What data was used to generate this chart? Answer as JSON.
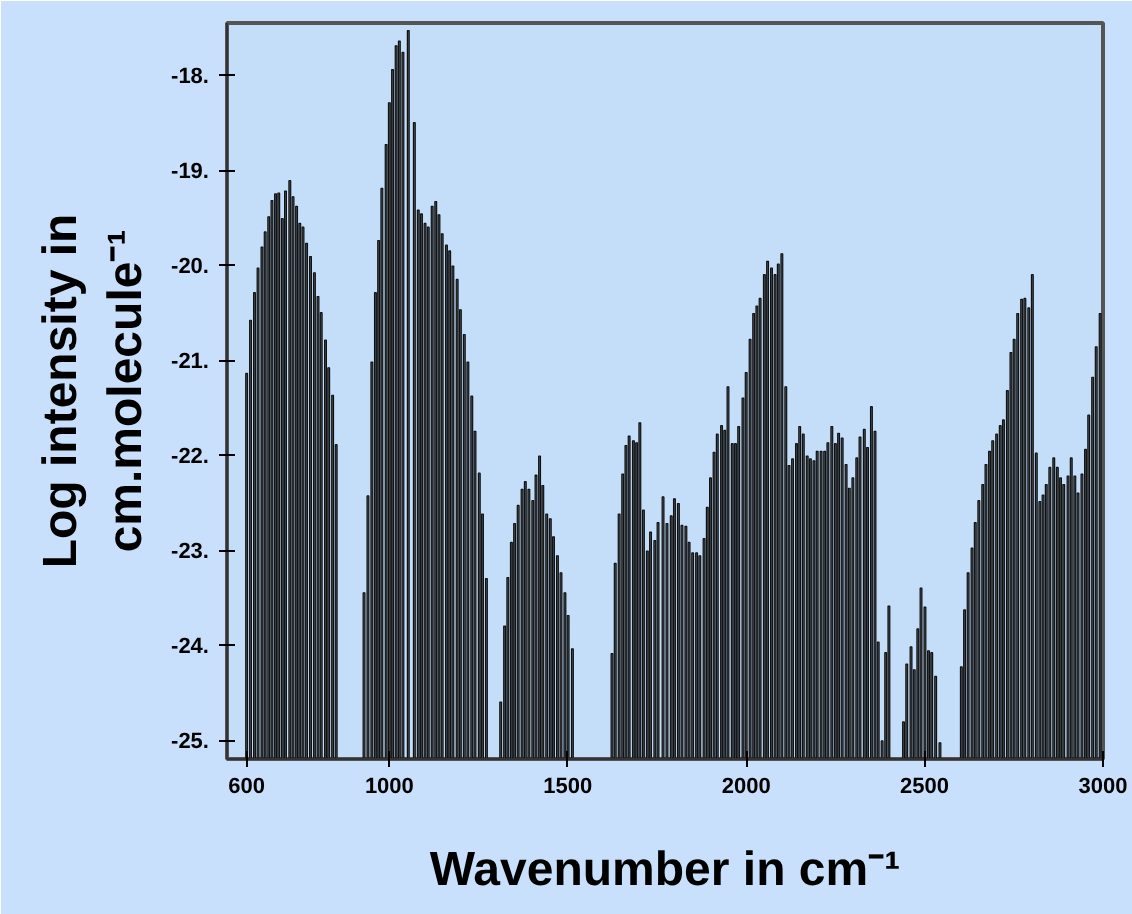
{
  "chart_data": {
    "type": "bar",
    "xlabel": "Wavenumber in cm⁻¹",
    "ylabel": "Log intensity in\ncm.molecule⁻¹",
    "color": "#4f5a66",
    "grid": false,
    "x": [
      600,
      611,
      622,
      632,
      643,
      652,
      662,
      671,
      681,
      690,
      700,
      709,
      721,
      730,
      740,
      749,
      758,
      768,
      779,
      790,
      800,
      809,
      821,
      830,
      841,
      851,
      929,
      940,
      951,
      961,
      970,
      979,
      991,
      1000,
      1009,
      1019,
      1028,
      1038,
      1053,
      1070,
      1081,
      1090,
      1100,
      1109,
      1120,
      1130,
      1139,
      1148,
      1160,
      1169,
      1178,
      1190,
      1199,
      1210,
      1220,
      1231,
      1240,
      1252,
      1261,
      1272,
      1312,
      1323,
      1332,
      1342,
      1351,
      1361,
      1372,
      1381,
      1391,
      1402,
      1411,
      1421,
      1430,
      1441,
      1451,
      1460,
      1471,
      1481,
      1492,
      1501,
      1513,
      1624,
      1633,
      1644,
      1654,
      1663,
      1672,
      1684,
      1693,
      1702,
      1712,
      1723,
      1732,
      1744,
      1753,
      1767,
      1778,
      1790,
      1799,
      1810,
      1820,
      1831,
      1840,
      1850,
      1861,
      1870,
      1882,
      1891,
      1900,
      1910,
      1919,
      1931,
      1940,
      1949,
      1961,
      1970,
      1979,
      1991,
      2000,
      2011,
      2021,
      2030,
      2039,
      2051,
      2060,
      2071,
      2081,
      2090,
      2100,
      2111,
      2120,
      2130,
      2141,
      2150,
      2160,
      2171,
      2180,
      2190,
      2199,
      2210,
      2220,
      2229,
      2240,
      2250,
      2259,
      2269,
      2280,
      2289,
      2299,
      2310,
      2319,
      2331,
      2340,
      2351,
      2361,
      2370,
      2381,
      2391,
      2400,
      2441,
      2450,
      2462,
      2471,
      2481,
      2490,
      2501,
      2511,
      2520,
      2531,
      2543,
      2603,
      2612,
      2622,
      2633,
      2642,
      2652,
      2663,
      2672,
      2682,
      2691,
      2702,
      2712,
      2721,
      2732,
      2742,
      2751,
      2761,
      2772,
      2781,
      2792,
      2802,
      2813,
      2823,
      2832,
      2841,
      2851,
      2862,
      2872,
      2881,
      2890,
      2902,
      2911,
      2921,
      2930,
      2941,
      2951,
      2960,
      2971,
      2981,
      2992
    ],
    "values": [
      4.06,
      4.62,
      4.91,
      5.17,
      5.39,
      5.55,
      5.71,
      5.88,
      5.95,
      5.96,
      5.69,
      5.98,
      6.09,
      5.92,
      5.82,
      5.64,
      5.6,
      5.43,
      5.29,
      5.12,
      4.87,
      4.7,
      4.41,
      4.12,
      3.83,
      3.31,
      1.75,
      2.77,
      4.18,
      4.91,
      5.46,
      6.01,
      6.47,
      6.91,
      7.26,
      7.51,
      7.56,
      7.44,
      7.67,
      6.7,
      5.78,
      5.74,
      5.64,
      5.6,
      5.82,
      5.87,
      5.73,
      5.53,
      5.41,
      5.35,
      5.19,
      5.05,
      4.73,
      4.47,
      4.18,
      3.82,
      3.45,
      3.01,
      2.58,
      1.9,
      0.6,
      1.4,
      1.91,
      2.28,
      2.48,
      2.67,
      2.84,
      2.92,
      2.84,
      2.72,
      2.99,
      3.19,
      2.88,
      2.58,
      2.53,
      2.34,
      2.14,
      1.96,
      1.75,
      1.51,
      1.16,
      1.11,
      2.06,
      2.58,
      3.0,
      3.3,
      3.4,
      3.35,
      3.33,
      3.54,
      2.62,
      2.19,
      2.39,
      2.3,
      2.49,
      2.76,
      2.48,
      2.56,
      2.74,
      2.69,
      2.46,
      2.45,
      2.28,
      2.17,
      2.17,
      2.14,
      2.32,
      2.65,
      2.96,
      3.23,
      3.42,
      3.51,
      3.46,
      3.92,
      3.32,
      3.32,
      3.5,
      3.8,
      4.07,
      4.42,
      4.69,
      4.77,
      4.85,
      5.1,
      5.24,
      5.17,
      5.1,
      5.21,
      5.32,
      3.92,
      3.09,
      3.16,
      3.32,
      3.5,
      3.42,
      3.19,
      3.16,
      3.14,
      3.24,
      3.24,
      3.24,
      3.33,
      3.5,
      3.32,
      3.43,
      3.38,
      3.1,
      2.85,
      2.96,
      3.17,
      3.39,
      3.47,
      3.28,
      3.71,
      3.45,
      1.23,
      0.19,
      1.12,
      1.61,
      0.39,
      1.0,
      1.18,
      0.94,
      1.37,
      1.8,
      1.6,
      1.14,
      1.12,
      0.87,
      0.17,
      0.97,
      1.57,
      1.96,
      2.22,
      2.49,
      2.72,
      2.89,
      3.1,
      3.24,
      3.35,
      3.42,
      3.51,
      3.57,
      3.88,
      4.28,
      4.42,
      4.69,
      4.84,
      4.85,
      4.75,
      5.1,
      3.22,
      2.71,
      2.78,
      2.89,
      3.07,
      3.17,
      3.07,
      2.96,
      2.89,
      2.98,
      3.17,
      2.98,
      2.8,
      3.0,
      3.26,
      3.62,
      4.02,
      4.34,
      4.69
    ],
    "base": [
      -25.2,
      -25.2,
      -25.2,
      -25.2,
      -25.2,
      -25.2,
      -25.2,
      -25.2,
      -25.2,
      -25.2,
      -25.2,
      -25.2,
      -25.2,
      -25.2,
      -25.2,
      -25.2,
      -25.2,
      -25.2,
      -25.2,
      -25.2,
      -25.2,
      -25.2,
      -25.2,
      -25.2,
      -25.2,
      -25.2,
      -25.2,
      -25.2,
      -25.2,
      -25.2,
      -25.2,
      -25.2,
      -25.2,
      -25.2,
      -25.2,
      -25.2,
      -25.2,
      -25.2,
      -25.2,
      -25.2,
      -25.2,
      -25.2,
      -25.2,
      -25.2,
      -25.2,
      -25.2,
      -25.2,
      -25.2,
      -25.2,
      -25.2,
      -25.2,
      -25.2,
      -25.2,
      -25.2,
      -25.2,
      -25.2,
      -25.2,
      -25.2,
      -25.2,
      -25.2,
      -25.2,
      -25.2,
      -25.2,
      -25.2,
      -25.2,
      -25.2,
      -25.2,
      -25.2,
      -25.2,
      -25.2,
      -25.2,
      -25.2,
      -25.2,
      -25.2,
      -25.2,
      -25.2,
      -25.2,
      -25.2,
      -25.2,
      -25.2,
      -25.2,
      -25.2,
      -25.2,
      -25.2,
      -25.2,
      -25.2,
      -25.2,
      -25.2,
      -25.2,
      -25.2,
      -25.2,
      -25.2,
      -25.2,
      -25.2,
      -25.2,
      -25.2,
      -25.2,
      -25.2,
      -25.2,
      -25.2,
      -25.2,
      -25.2,
      -25.2,
      -25.2,
      -25.2,
      -25.2,
      -25.2,
      -25.2,
      -25.2,
      -25.2,
      -25.2,
      -25.2,
      -25.2,
      -25.2,
      -25.2,
      -25.2,
      -25.2,
      -25.2,
      -25.2,
      -25.2,
      -25.2,
      -25.2,
      -25.2,
      -25.2,
      -25.2,
      -25.2,
      -25.2,
      -25.2,
      -25.2,
      -25.2,
      -25.2,
      -25.2,
      -25.2,
      -25.2,
      -25.2,
      -25.2,
      -25.2,
      -25.2,
      -25.2,
      -25.2,
      -25.2,
      -25.2,
      -25.2,
      -25.2,
      -25.2,
      -25.2,
      -25.2,
      -25.2,
      -25.2,
      -25.2,
      -25.2,
      -25.2,
      -25.2,
      -25.2,
      -25.2,
      -25.2,
      -25.2,
      -25.2,
      -25.2,
      -25.2,
      -25.2,
      -25.2,
      -25.2,
      -25.2,
      -25.2,
      -25.2,
      -25.2,
      -25.2,
      -25.2,
      -25.2,
      -25.2,
      -25.2,
      -25.2,
      -25.2,
      -25.2,
      -25.2,
      -25.2,
      -25.2,
      -25.2,
      -25.2,
      -25.2,
      -25.2,
      -25.2,
      -25.2,
      -25.2,
      -25.2,
      -25.2,
      -25.2,
      -25.2,
      -25.2,
      -25.2,
      -25.2,
      -25.2,
      -25.2,
      -25.2,
      -25.2,
      -25.2,
      -25.2,
      -25.2,
      -25.2,
      -25.2,
      -25.2,
      -25.2,
      -25.2,
      -25.2,
      -25.2,
      -25.2,
      -25.2,
      -25.2,
      -25.2
    ],
    "xlim": [
      545,
      3000
    ],
    "ylim": [
      -25.2,
      -17.45
    ],
    "xticks": [
      600,
      1000,
      1500,
      2000,
      2500,
      3000
    ],
    "yticks": [
      {
        "value": -18,
        "label": "-18."
      },
      {
        "value": -19,
        "label": "-19."
      },
      {
        "value": -20,
        "label": "-20."
      },
      {
        "value": -21,
        "label": "-21."
      },
      {
        "value": -22,
        "label": "-22."
      },
      {
        "value": -23,
        "label": "-23."
      },
      {
        "value": -24,
        "label": "-24."
      },
      {
        "value": -25,
        "label": "-25."
      }
    ]
  }
}
